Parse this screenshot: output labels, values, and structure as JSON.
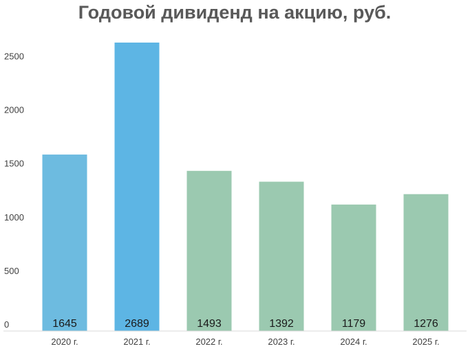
{
  "chart_data": {
    "type": "bar",
    "title": "Годовой дивиденд на акцию, руб.",
    "xlabel": "",
    "ylabel": "",
    "categories": [
      "2020 г.",
      "2021 г.",
      "2022 г.",
      "2023 г.",
      "2024 г.",
      "2025 г."
    ],
    "values": [
      1645,
      2689,
      1493,
      1392,
      1179,
      1276
    ],
    "data_labels": [
      "1645",
      "2689",
      "1493",
      "1392",
      "1179",
      "1276"
    ],
    "bar_colors": [
      "#6dbbe0",
      "#5db5e4",
      "#9bc9b0",
      "#9bc9b0",
      "#9bc9b0",
      "#9bc9b0"
    ],
    "ylim": [
      0,
      2700
    ],
    "y_ticks": [
      0,
      500,
      1000,
      1500,
      2000,
      2500
    ],
    "y_tick_labels": [
      "0",
      "500",
      "1000",
      "1500",
      "2000",
      "2500"
    ],
    "grid": false,
    "legend": "none"
  }
}
